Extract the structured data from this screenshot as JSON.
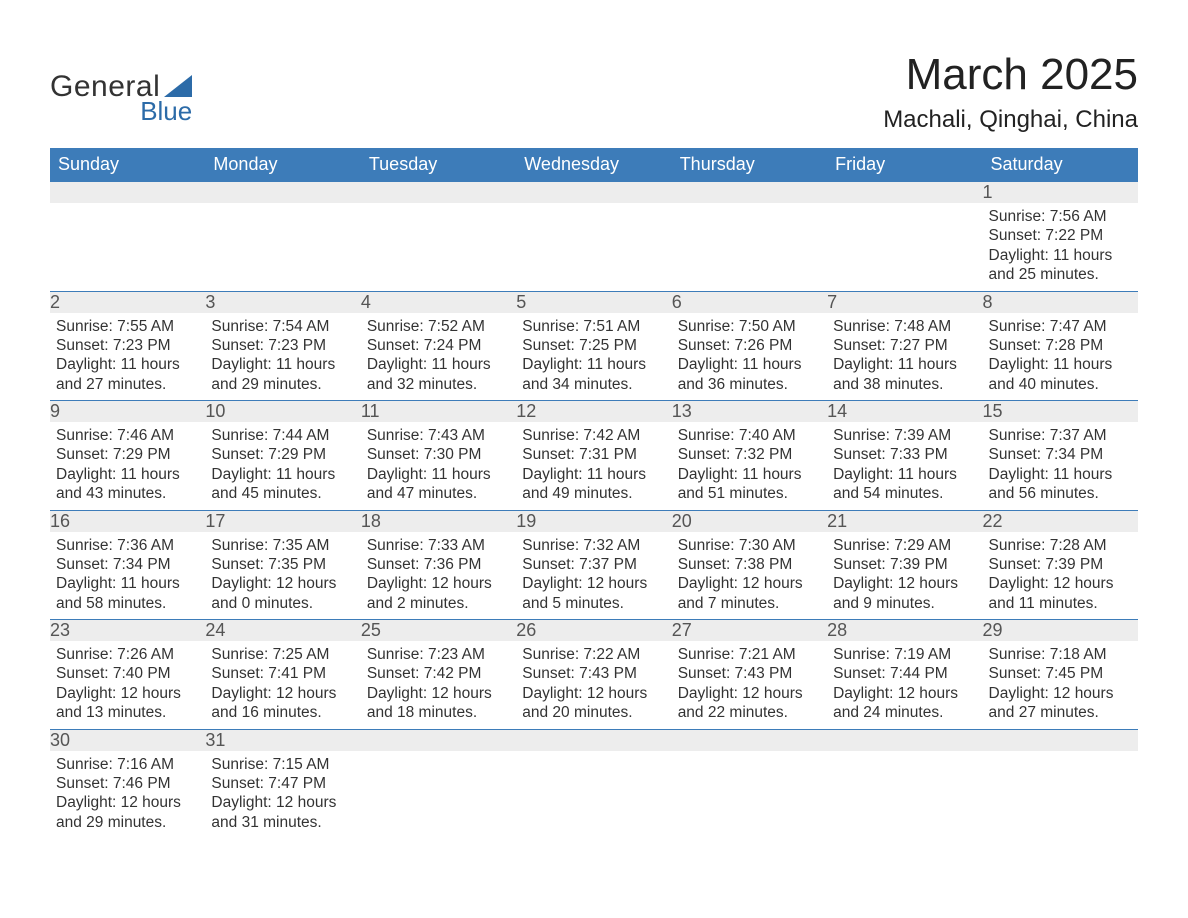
{
  "logo": {
    "text_general": "General",
    "text_blue": "Blue",
    "triangle_color": "#2c6ba8"
  },
  "title": {
    "month_year": "March 2025",
    "location": "Machali, Qinghai, China"
  },
  "header_bg": "#3d7cb9",
  "header_fg": "#ffffff",
  "daynum_bg": "#ededed",
  "row_border": "#3d7cb9",
  "weekdays": [
    "Sunday",
    "Monday",
    "Tuesday",
    "Wednesday",
    "Thursday",
    "Friday",
    "Saturday"
  ],
  "weeks": [
    [
      null,
      null,
      null,
      null,
      null,
      null,
      {
        "n": "1",
        "sunrise": "7:56 AM",
        "sunset": "7:22 PM",
        "daylight_h": "11",
        "daylight_m": "25"
      }
    ],
    [
      {
        "n": "2",
        "sunrise": "7:55 AM",
        "sunset": "7:23 PM",
        "daylight_h": "11",
        "daylight_m": "27"
      },
      {
        "n": "3",
        "sunrise": "7:54 AM",
        "sunset": "7:23 PM",
        "daylight_h": "11",
        "daylight_m": "29"
      },
      {
        "n": "4",
        "sunrise": "7:52 AM",
        "sunset": "7:24 PM",
        "daylight_h": "11",
        "daylight_m": "32"
      },
      {
        "n": "5",
        "sunrise": "7:51 AM",
        "sunset": "7:25 PM",
        "daylight_h": "11",
        "daylight_m": "34"
      },
      {
        "n": "6",
        "sunrise": "7:50 AM",
        "sunset": "7:26 PM",
        "daylight_h": "11",
        "daylight_m": "36"
      },
      {
        "n": "7",
        "sunrise": "7:48 AM",
        "sunset": "7:27 PM",
        "daylight_h": "11",
        "daylight_m": "38"
      },
      {
        "n": "8",
        "sunrise": "7:47 AM",
        "sunset": "7:28 PM",
        "daylight_h": "11",
        "daylight_m": "40"
      }
    ],
    [
      {
        "n": "9",
        "sunrise": "7:46 AM",
        "sunset": "7:29 PM",
        "daylight_h": "11",
        "daylight_m": "43"
      },
      {
        "n": "10",
        "sunrise": "7:44 AM",
        "sunset": "7:29 PM",
        "daylight_h": "11",
        "daylight_m": "45"
      },
      {
        "n": "11",
        "sunrise": "7:43 AM",
        "sunset": "7:30 PM",
        "daylight_h": "11",
        "daylight_m": "47"
      },
      {
        "n": "12",
        "sunrise": "7:42 AM",
        "sunset": "7:31 PM",
        "daylight_h": "11",
        "daylight_m": "49"
      },
      {
        "n": "13",
        "sunrise": "7:40 AM",
        "sunset": "7:32 PM",
        "daylight_h": "11",
        "daylight_m": "51"
      },
      {
        "n": "14",
        "sunrise": "7:39 AM",
        "sunset": "7:33 PM",
        "daylight_h": "11",
        "daylight_m": "54"
      },
      {
        "n": "15",
        "sunrise": "7:37 AM",
        "sunset": "7:34 PM",
        "daylight_h": "11",
        "daylight_m": "56"
      }
    ],
    [
      {
        "n": "16",
        "sunrise": "7:36 AM",
        "sunset": "7:34 PM",
        "daylight_h": "11",
        "daylight_m": "58"
      },
      {
        "n": "17",
        "sunrise": "7:35 AM",
        "sunset": "7:35 PM",
        "daylight_h": "12",
        "daylight_m": "0"
      },
      {
        "n": "18",
        "sunrise": "7:33 AM",
        "sunset": "7:36 PM",
        "daylight_h": "12",
        "daylight_m": "2"
      },
      {
        "n": "19",
        "sunrise": "7:32 AM",
        "sunset": "7:37 PM",
        "daylight_h": "12",
        "daylight_m": "5"
      },
      {
        "n": "20",
        "sunrise": "7:30 AM",
        "sunset": "7:38 PM",
        "daylight_h": "12",
        "daylight_m": "7"
      },
      {
        "n": "21",
        "sunrise": "7:29 AM",
        "sunset": "7:39 PM",
        "daylight_h": "12",
        "daylight_m": "9"
      },
      {
        "n": "22",
        "sunrise": "7:28 AM",
        "sunset": "7:39 PM",
        "daylight_h": "12",
        "daylight_m": "11"
      }
    ],
    [
      {
        "n": "23",
        "sunrise": "7:26 AM",
        "sunset": "7:40 PM",
        "daylight_h": "12",
        "daylight_m": "13"
      },
      {
        "n": "24",
        "sunrise": "7:25 AM",
        "sunset": "7:41 PM",
        "daylight_h": "12",
        "daylight_m": "16"
      },
      {
        "n": "25",
        "sunrise": "7:23 AM",
        "sunset": "7:42 PM",
        "daylight_h": "12",
        "daylight_m": "18"
      },
      {
        "n": "26",
        "sunrise": "7:22 AM",
        "sunset": "7:43 PM",
        "daylight_h": "12",
        "daylight_m": "20"
      },
      {
        "n": "27",
        "sunrise": "7:21 AM",
        "sunset": "7:43 PM",
        "daylight_h": "12",
        "daylight_m": "22"
      },
      {
        "n": "28",
        "sunrise": "7:19 AM",
        "sunset": "7:44 PM",
        "daylight_h": "12",
        "daylight_m": "24"
      },
      {
        "n": "29",
        "sunrise": "7:18 AM",
        "sunset": "7:45 PM",
        "daylight_h": "12",
        "daylight_m": "27"
      }
    ],
    [
      {
        "n": "30",
        "sunrise": "7:16 AM",
        "sunset": "7:46 PM",
        "daylight_h": "12",
        "daylight_m": "29"
      },
      {
        "n": "31",
        "sunrise": "7:15 AM",
        "sunset": "7:47 PM",
        "daylight_h": "12",
        "daylight_m": "31"
      },
      null,
      null,
      null,
      null,
      null
    ]
  ],
  "labels": {
    "sunrise": "Sunrise: ",
    "sunset": "Sunset: ",
    "daylight_prefix": "Daylight: ",
    "hours_word": " hours",
    "and_word": "and ",
    "minutes_word": " minutes."
  }
}
